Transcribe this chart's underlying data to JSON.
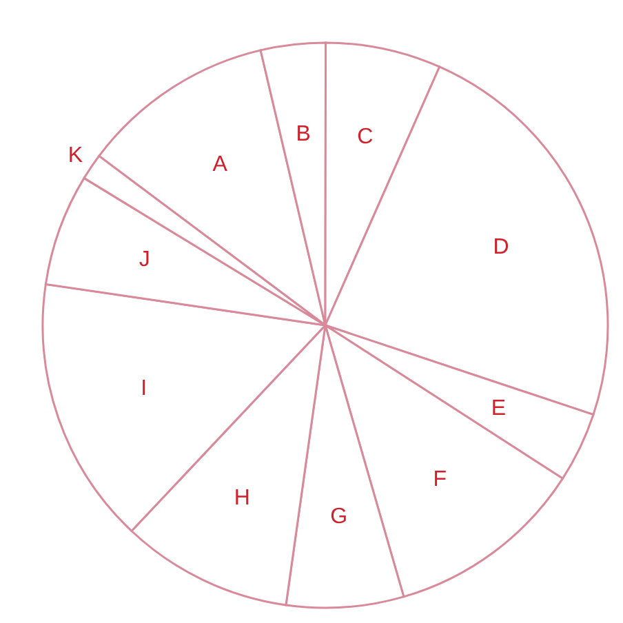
{
  "chart_data": {
    "type": "pie",
    "categories": [
      "A",
      "B",
      "C",
      "D",
      "E",
      "F",
      "G",
      "H",
      "I",
      "J",
      "K"
    ],
    "values": [
      11.1,
      3.7,
      6.6,
      23.5,
      4.0,
      11.4,
      6.7,
      9.8,
      15.3,
      6.4,
      1.5
    ],
    "colors": [
      "#ffffff",
      "#ffffff",
      "#ffffff",
      "#ffffff",
      "#ffffff",
      "#ffffff",
      "#ffffff",
      "#ffffff",
      "#ffffff",
      "#ffffff",
      "#ffffff"
    ],
    "legend": false
  }
}
